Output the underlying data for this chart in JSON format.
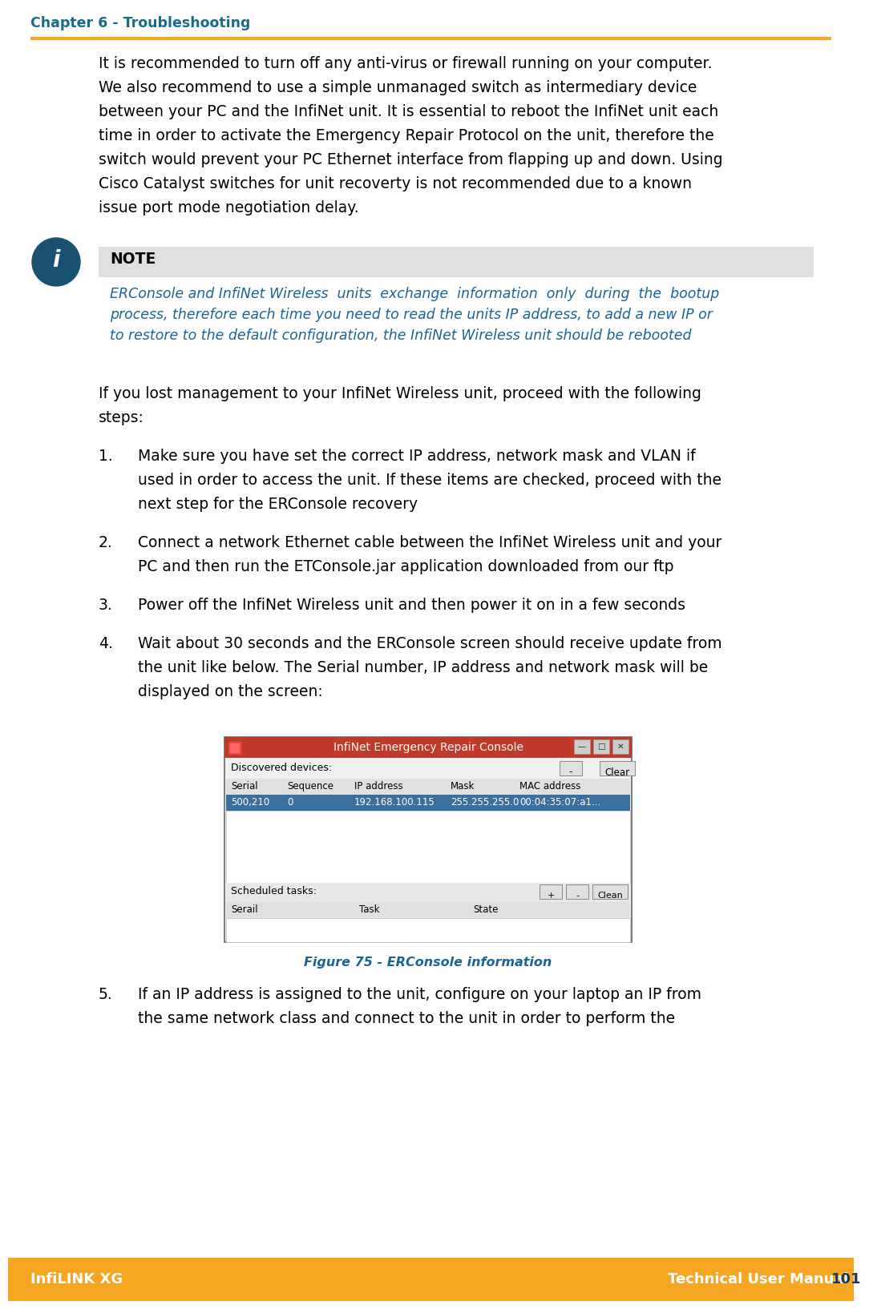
{
  "page_bg": "#ffffff",
  "header_text": "Chapter 6 - Troubleshooting",
  "header_color": "#1a6b8a",
  "header_line_color": "#f5a623",
  "footer_bg": "#f5a623",
  "footer_left": "InfiLINK XG",
  "footer_right": "Technical User Manual",
  "footer_page": "101",
  "footer_text_color": "#ffffff",
  "footer_page_color": "#1a3a5c",
  "body_text_color": "#000000",
  "note_bg": "#e0e0e0",
  "note_title": "NOTE",
  "note_icon_color": "#1a5070",
  "note_text_color": "#1a6496",
  "figure_caption": "Figure 75 - ERConsole information",
  "figure_caption_color": "#1a6496",
  "console_title": "InfiNet Emergency Repair Console",
  "console_title_bg": "#c0392b",
  "console_title_color": "#ffffff",
  "console_border": "#888888",
  "console_header_row": [
    "Serial",
    "Sequence",
    "IP address",
    "Mask",
    "MAC address"
  ],
  "console_data_row": [
    "500,210",
    "0",
    "192.168.100.115",
    "255.255.255.0",
    "00:04:35:07:a1..."
  ],
  "console_row_bg": "#3a6fa0",
  "console_row_color": "#ffffff",
  "console_scheduled": "Scheduled tasks:",
  "console_sched_cols": [
    "Serail",
    "Task",
    "State"
  ],
  "console_top_buttons": [
    "-",
    "Clear"
  ],
  "console_discovered": "Discovered devices:",
  "para1_lines": [
    "It is recommended to turn off any anti-virus or firewall running on your computer.",
    "We also recommend to use a simple unmanaged switch as intermediary device",
    "between your PC and the InfiNet unit. It is essential to reboot the InfiNet unit each",
    "time in order to activate the Emergency Repair Protocol on the unit, therefore the",
    "switch would prevent your PC Ethernet interface from flapping up and down. Using",
    "Cisco Catalyst switches for unit recoverty is not recommended due to a known",
    "issue port mode negotiation delay."
  ],
  "note_lines": [
    "ERConsole and InfiNet Wireless  units  exchange  information  only  during  the  bootup",
    "process, therefore each time you need to read the units IP address, to add a new IP or",
    "to restore to the default configuration, the InfiNet Wireless unit should be rebooted"
  ],
  "para2_lines": [
    "If you lost management to your InfiNet Wireless unit, proceed with the following",
    "steps:"
  ],
  "step1_lines": [
    "Make sure you have set the correct IP address, network mask and VLAN if",
    "used in order to access the unit. If these items are checked, proceed with the",
    "next step for the ERConsole recovery"
  ],
  "step2_lines": [
    "Connect a network Ethernet cable between the InfiNet Wireless unit and your",
    "PC and then run the ETConsole.jar application downloaded from our ftp"
  ],
  "step3_lines": [
    "Power off the InfiNet Wireless unit and then power it on in a few seconds"
  ],
  "step4_lines": [
    "Wait about 30 seconds and the ERConsole screen should receive update from",
    "the unit like below. The Serial number, IP address and network mask will be",
    "displayed on the screen:"
  ],
  "step5_lines": [
    "If an IP address is assigned to the unit, configure on your laptop an IP from",
    "the same network class and connect to the unit in order to perform the"
  ]
}
